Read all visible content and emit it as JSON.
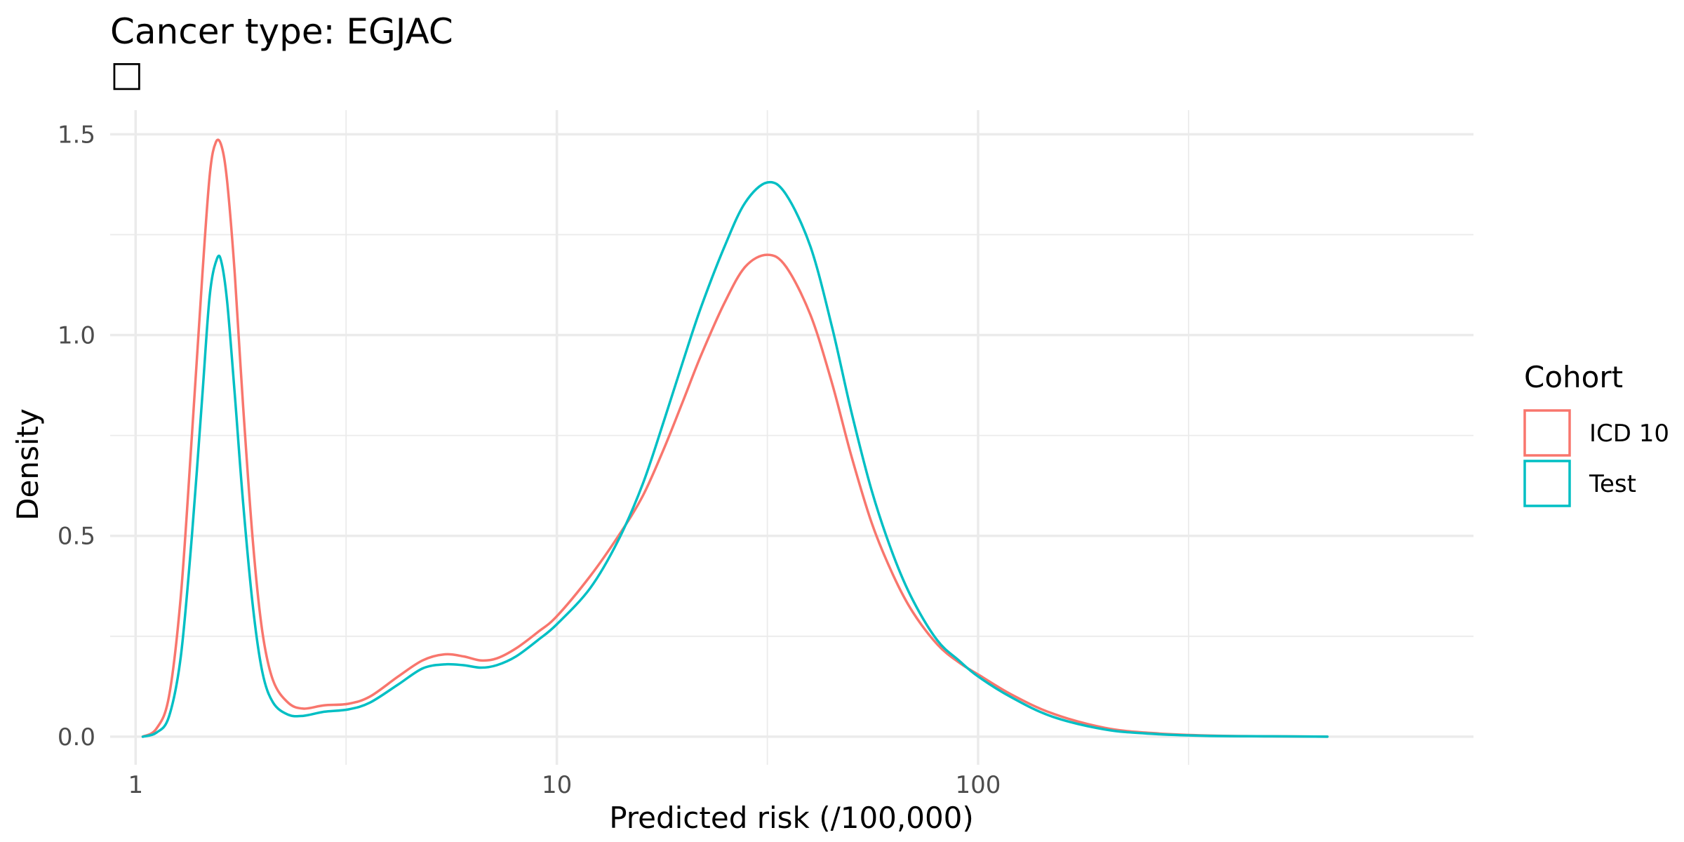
{
  "chart_data": {
    "type": "line",
    "title": "Cancer type: EGJAC",
    "subtitle": "□",
    "xlabel": "Predicted risk (/100,000)",
    "ylabel": "Density",
    "x_scale": "log10",
    "xlim": [
      0.87,
      1500
    ],
    "ylim": [
      -0.07,
      1.56
    ],
    "x_ticks": [
      1,
      10,
      100
    ],
    "x_tick_labels": [
      "1",
      "10",
      "100"
    ],
    "x_minor_ticks": [
      3.16,
      31.6,
      316
    ],
    "y_ticks": [
      0,
      0.5,
      1,
      1.5
    ],
    "y_tick_labels": [
      "0.0",
      "0.5",
      "1.0",
      "1.5"
    ],
    "y_minor_ticks": [
      0.25,
      0.75,
      1.25
    ],
    "grid": true,
    "legend": {
      "title": "Cohort",
      "position": "right"
    },
    "series": [
      {
        "name": "ICD 10",
        "color": "#f8766d",
        "points": [
          [
            1.04,
            0.0
          ],
          [
            1.12,
            0.02
          ],
          [
            1.2,
            0.1
          ],
          [
            1.28,
            0.35
          ],
          [
            1.36,
            0.75
          ],
          [
            1.44,
            1.15
          ],
          [
            1.5,
            1.4
          ],
          [
            1.55,
            1.48
          ],
          [
            1.6,
            1.47
          ],
          [
            1.65,
            1.38
          ],
          [
            1.72,
            1.15
          ],
          [
            1.8,
            0.82
          ],
          [
            1.9,
            0.48
          ],
          [
            2.0,
            0.26
          ],
          [
            2.12,
            0.14
          ],
          [
            2.3,
            0.085
          ],
          [
            2.5,
            0.07
          ],
          [
            2.8,
            0.078
          ],
          [
            3.2,
            0.082
          ],
          [
            3.6,
            0.1
          ],
          [
            4.2,
            0.15
          ],
          [
            4.8,
            0.19
          ],
          [
            5.4,
            0.205
          ],
          [
            6.0,
            0.2
          ],
          [
            6.6,
            0.19
          ],
          [
            7.2,
            0.195
          ],
          [
            8.0,
            0.22
          ],
          [
            9.0,
            0.26
          ],
          [
            10.0,
            0.3
          ],
          [
            12.0,
            0.4
          ],
          [
            14.0,
            0.5
          ],
          [
            16.0,
            0.6
          ],
          [
            18.0,
            0.72
          ],
          [
            20.0,
            0.84
          ],
          [
            22.0,
            0.95
          ],
          [
            25.0,
            1.08
          ],
          [
            28.0,
            1.17
          ],
          [
            31.6,
            1.2
          ],
          [
            35.0,
            1.17
          ],
          [
            40.0,
            1.05
          ],
          [
            45.0,
            0.88
          ],
          [
            50.0,
            0.7
          ],
          [
            56.0,
            0.53
          ],
          [
            63.0,
            0.4
          ],
          [
            70.0,
            0.31
          ],
          [
            80.0,
            0.23
          ],
          [
            90.0,
            0.185
          ],
          [
            100.0,
            0.155
          ],
          [
            120.0,
            0.105
          ],
          [
            150.0,
            0.058
          ],
          [
            200.0,
            0.022
          ],
          [
            260.0,
            0.009
          ],
          [
            350.0,
            0.003
          ],
          [
            500.0,
            0.001
          ],
          [
            675.0,
            0.0
          ]
        ]
      },
      {
        "name": "Test",
        "color": "#00bfc4",
        "points": [
          [
            1.04,
            0.0
          ],
          [
            1.12,
            0.01
          ],
          [
            1.2,
            0.05
          ],
          [
            1.28,
            0.2
          ],
          [
            1.36,
            0.5
          ],
          [
            1.44,
            0.85
          ],
          [
            1.5,
            1.1
          ],
          [
            1.56,
            1.19
          ],
          [
            1.6,
            1.18
          ],
          [
            1.65,
            1.08
          ],
          [
            1.72,
            0.85
          ],
          [
            1.8,
            0.58
          ],
          [
            1.9,
            0.32
          ],
          [
            2.0,
            0.16
          ],
          [
            2.12,
            0.085
          ],
          [
            2.3,
            0.055
          ],
          [
            2.5,
            0.052
          ],
          [
            2.8,
            0.062
          ],
          [
            3.2,
            0.068
          ],
          [
            3.6,
            0.085
          ],
          [
            4.2,
            0.13
          ],
          [
            4.8,
            0.17
          ],
          [
            5.4,
            0.18
          ],
          [
            6.0,
            0.178
          ],
          [
            6.6,
            0.172
          ],
          [
            7.2,
            0.178
          ],
          [
            8.0,
            0.2
          ],
          [
            9.0,
            0.24
          ],
          [
            10.0,
            0.28
          ],
          [
            12.0,
            0.37
          ],
          [
            14.0,
            0.49
          ],
          [
            16.0,
            0.63
          ],
          [
            18.0,
            0.79
          ],
          [
            20.0,
            0.94
          ],
          [
            22.0,
            1.07
          ],
          [
            25.0,
            1.22
          ],
          [
            28.0,
            1.33
          ],
          [
            31.6,
            1.38
          ],
          [
            35.0,
            1.35
          ],
          [
            40.0,
            1.22
          ],
          [
            45.0,
            1.02
          ],
          [
            50.0,
            0.81
          ],
          [
            56.0,
            0.61
          ],
          [
            63.0,
            0.45
          ],
          [
            70.0,
            0.34
          ],
          [
            80.0,
            0.24
          ],
          [
            90.0,
            0.19
          ],
          [
            100.0,
            0.15
          ],
          [
            120.0,
            0.098
          ],
          [
            150.0,
            0.05
          ],
          [
            200.0,
            0.018
          ],
          [
            260.0,
            0.007
          ],
          [
            350.0,
            0.002
          ],
          [
            500.0,
            0.001
          ],
          [
            675.0,
            0.0
          ]
        ]
      }
    ]
  }
}
